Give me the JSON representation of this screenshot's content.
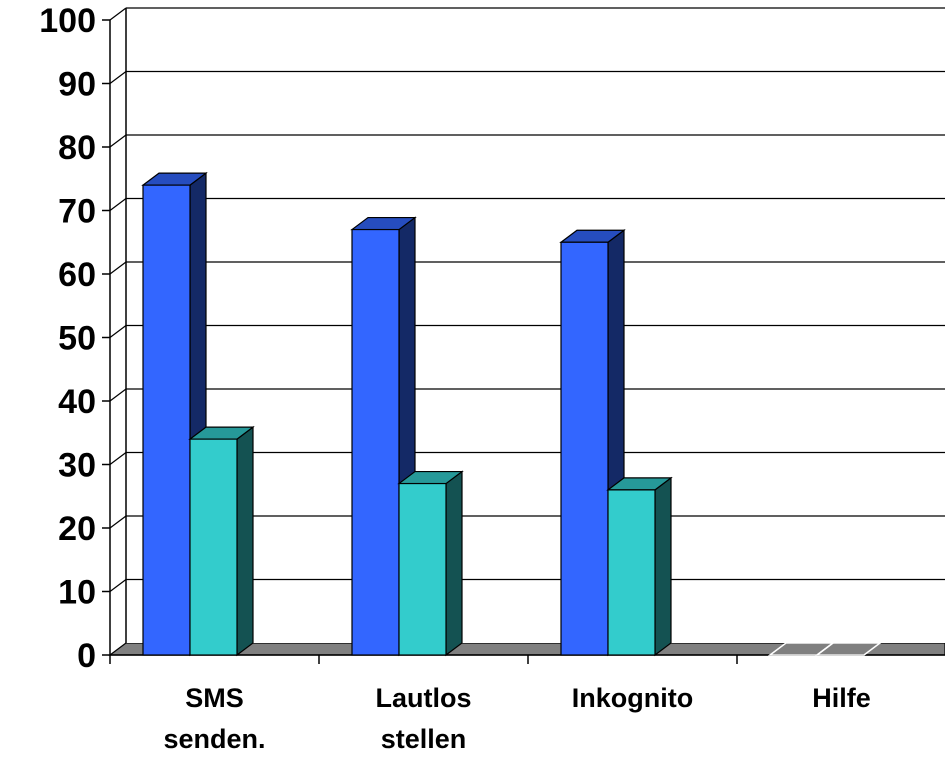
{
  "chart_data": {
    "type": "bar",
    "title": "",
    "xlabel": "",
    "ylabel": "",
    "ylim": [
      0,
      100
    ],
    "yticks": [
      "0",
      "10",
      "20",
      "30",
      "40",
      "50",
      "60",
      "70",
      "80",
      "90",
      "100"
    ],
    "grid": true,
    "legend": "none",
    "categories": [
      [
        "SMS",
        "senden."
      ],
      [
        "Lautlos",
        "stellen"
      ],
      [
        "Inkognito"
      ],
      [
        "Hilfe"
      ]
    ],
    "series": [
      {
        "values": [
          74,
          67,
          65,
          0
        ],
        "color": "#3366ff"
      },
      {
        "values": [
          34,
          27,
          26,
          0
        ],
        "color": "#33cccc"
      }
    ]
  }
}
